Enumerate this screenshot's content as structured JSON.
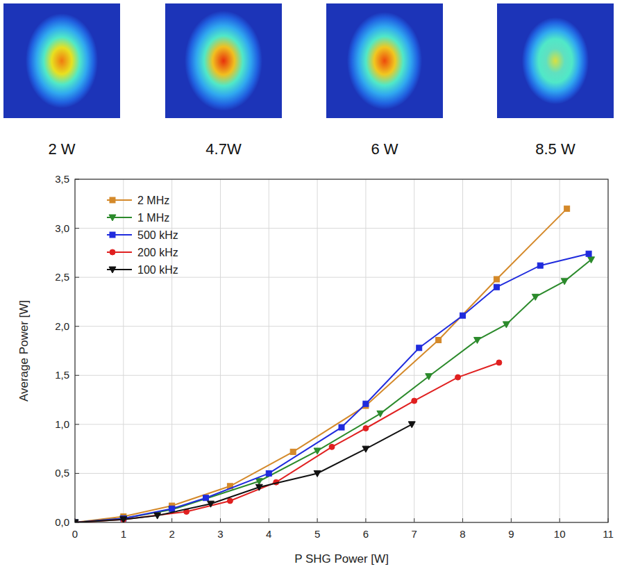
{
  "beam_profiles": {
    "labels": [
      "2 W",
      "4.7W",
      "6 W",
      "8.5 W"
    ]
  },
  "chart_data": {
    "type": "line",
    "x_label": "P SHG Power [W]",
    "y_label": "Average Power [W]",
    "xlim": [
      0,
      11
    ],
    "xticks": [
      0,
      1,
      2,
      3,
      4,
      5,
      6,
      7,
      8,
      9,
      10,
      11
    ],
    "ylim": [
      0,
      3.5
    ],
    "yticks": [
      {
        "value": 0,
        "label": "0,0"
      },
      {
        "value": 0.5,
        "label": "0,5"
      },
      {
        "value": 1,
        "label": "1,0"
      },
      {
        "value": 1.5,
        "label": "1,5"
      },
      {
        "value": 2,
        "label": "2,0"
      },
      {
        "value": 2.5,
        "label": "2,5"
      },
      {
        "value": 3,
        "label": "3,0"
      },
      {
        "value": 3.5,
        "label": "3,5"
      }
    ],
    "grid": true,
    "legend": "upper left",
    "series": [
      {
        "name": "2 MHz",
        "color": "#d4892a",
        "marker": "square",
        "x": [
          0,
          1,
          2,
          3.2,
          4.5,
          6,
          7.5,
          8.7,
          10.15
        ],
        "values": [
          0,
          0.06,
          0.17,
          0.37,
          0.72,
          1.19,
          1.86,
          2.48,
          3.2
        ]
      },
      {
        "name": "1 MHz",
        "color": "#2b8a2b",
        "marker": "triangle-down",
        "x": [
          0,
          1,
          2,
          3.8,
          5,
          6.3,
          7.3,
          8.3,
          8.9,
          9.5,
          10.1,
          10.65
        ],
        "values": [
          0,
          0.04,
          0.13,
          0.42,
          0.73,
          1.11,
          1.49,
          1.86,
          2.02,
          2.3,
          2.46,
          2.68
        ]
      },
      {
        "name": "500 kHz",
        "color": "#1f2bdd",
        "marker": "square",
        "x": [
          0,
          1,
          2,
          2.7,
          4,
          5.5,
          6,
          7.1,
          8,
          8.7,
          9.6,
          10.6
        ],
        "values": [
          0,
          0.04,
          0.14,
          0.25,
          0.5,
          0.97,
          1.21,
          1.78,
          2.11,
          2.4,
          2.62,
          2.74
        ]
      },
      {
        "name": "200 kHz",
        "color": "#e02020",
        "marker": "circle",
        "x": [
          0,
          1,
          2.3,
          3.2,
          4.15,
          5.3,
          6,
          7,
          7.9,
          8.75
        ],
        "values": [
          0,
          0.03,
          0.11,
          0.22,
          0.41,
          0.77,
          0.96,
          1.24,
          1.48,
          1.63
        ]
      },
      {
        "name": "100 kHz",
        "color": "#111111",
        "marker": "triangle-down",
        "x": [
          0,
          1,
          1.7,
          2.8,
          3.8,
          5,
          6,
          6.95
        ],
        "values": [
          0,
          0.03,
          0.07,
          0.19,
          0.36,
          0.5,
          0.75,
          1.0
        ]
      }
    ]
  }
}
